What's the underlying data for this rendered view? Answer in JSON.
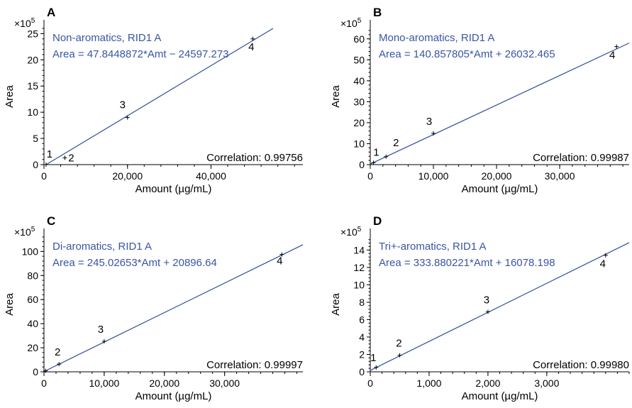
{
  "chart_data": [
    {
      "type": "scatter",
      "panel": "A",
      "multiplier": "×10",
      "multiplier_exp": "5",
      "series_label": "Non-aromatics, RID1 A",
      "equation": "Area = 47.8448872*Amt − 24597.273",
      "correlation": "Correlation: 0.99756",
      "xlabel": "Amount (µg/mL)",
      "ylabel": "Area",
      "xlim": [
        0,
        62000
      ],
      "ylim": [
        0,
        26
      ],
      "xticks": [
        0,
        20000,
        40000
      ],
      "xtick_labels": [
        "0",
        "20,000",
        "40,000"
      ],
      "yticks": [
        0,
        5,
        10,
        15,
        20,
        25
      ],
      "ytick_labels": [
        "0",
        "5",
        "10",
        "15",
        "20",
        "25"
      ],
      "fit": {
        "slope": 47.8448872,
        "intercept": -24597.273
      },
      "points": [
        {
          "label": "1",
          "x": 500,
          "y": 0.0
        },
        {
          "label": "2",
          "x": 5000,
          "y": 1.3
        },
        {
          "label": "3",
          "x": 20000,
          "y": 9.0
        },
        {
          "label": "4",
          "x": 50000,
          "y": 24.0
        }
      ]
    },
    {
      "type": "scatter",
      "panel": "B",
      "multiplier": "×10",
      "multiplier_exp": "5",
      "series_label": "Mono-aromatics, RID1 A",
      "equation": "Area = 140.857805*Amt + 26032.465",
      "correlation": "Correlation: 0.99987",
      "xlabel": "Amount (µg/mL)",
      "ylabel": "Area",
      "xlim": [
        0,
        41000
      ],
      "ylim": [
        0,
        65
      ],
      "xticks": [
        0,
        10000,
        20000,
        30000
      ],
      "xtick_labels": [
        "0",
        "10,000",
        "20,000",
        "30,000"
      ],
      "yticks": [
        0,
        10,
        20,
        30,
        40,
        50,
        60
      ],
      "ytick_labels": [
        "0",
        "10",
        "20",
        "30",
        "40",
        "50",
        "60"
      ],
      "fit": {
        "slope": 140.857805,
        "intercept": 26032.465
      },
      "points": [
        {
          "label": "1",
          "x": 500,
          "y": 0.9
        },
        {
          "label": "2",
          "x": 2500,
          "y": 3.8
        },
        {
          "label": "3",
          "x": 10000,
          "y": 14.9
        },
        {
          "label": "4",
          "x": 39000,
          "y": 56.3
        }
      ]
    },
    {
      "type": "scatter",
      "panel": "C",
      "multiplier": "×10",
      "multiplier_exp": "5",
      "series_label": "Di-aromatics, RID1 A",
      "equation": "Area = 245.02653*Amt + 20896.64",
      "correlation": "Correlation: 0.99997",
      "xlabel": "Amount (µg/mL)",
      "ylabel": "Area",
      "xlim": [
        0,
        43000
      ],
      "ylim": [
        0,
        112
      ],
      "xticks": [
        0,
        10000,
        20000,
        30000
      ],
      "xtick_labels": [
        "0",
        "10,000",
        "20,000",
        "30,000"
      ],
      "yticks": [
        0,
        20,
        40,
        60,
        80,
        100
      ],
      "ytick_labels": [
        "0",
        "20",
        "40",
        "60",
        "80",
        "100"
      ],
      "fit": {
        "slope": 245.02653,
        "intercept": 20896.64
      },
      "points": [
        {
          "label": "",
          "x": 250,
          "y": 0.8
        },
        {
          "label": "2",
          "x": 2500,
          "y": 6.4
        },
        {
          "label": "3",
          "x": 10000,
          "y": 25.3
        },
        {
          "label": "4",
          "x": 39500,
          "y": 97.5
        }
      ]
    },
    {
      "type": "scatter",
      "panel": "D",
      "multiplier": "×10",
      "multiplier_exp": "5",
      "series_label": "Tri+-aromatics, RID1 A",
      "equation": "Area = 333.880221*Amt + 16078.198",
      "correlation": "Correlation: 0.99980",
      "xlabel": "Amount (µg/mL)",
      "ylabel": "Area",
      "xlim": [
        0,
        4400
      ],
      "ylim": [
        0,
        15.5
      ],
      "xticks": [
        0,
        1000,
        2000,
        3000
      ],
      "xtick_labels": [
        "0",
        "1,000",
        "2,000",
        "3,000"
      ],
      "yticks": [
        0,
        2,
        4,
        6,
        8,
        10,
        12,
        14
      ],
      "ytick_labels": [
        "0",
        "2",
        "4",
        "6",
        "8",
        "10",
        "12",
        "14"
      ],
      "fit": {
        "slope": 333.880221,
        "intercept": 16078.198
      },
      "points": [
        {
          "label": "1",
          "x": 100,
          "y": 0.5
        },
        {
          "label": "2",
          "x": 500,
          "y": 1.9
        },
        {
          "label": "3",
          "x": 2000,
          "y": 6.9
        },
        {
          "label": "4",
          "x": 4000,
          "y": 13.4
        }
      ]
    }
  ]
}
